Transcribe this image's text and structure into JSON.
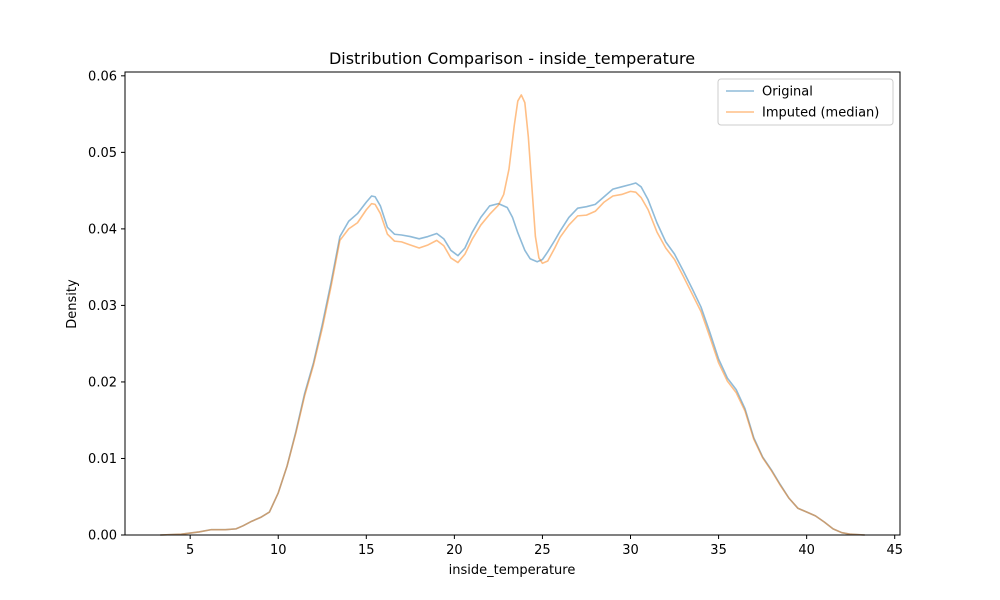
{
  "chart_data": {
    "type": "line",
    "title": "Distribution Comparison - inside_temperature",
    "xlabel": "inside_temperature",
    "ylabel": "Density",
    "xlim": [
      1.3,
      45.3
    ],
    "ylim": [
      0,
      0.0605
    ],
    "xticks": [
      5,
      10,
      15,
      20,
      25,
      30,
      35,
      40,
      45
    ],
    "xtick_labels": [
      "5",
      "10",
      "15",
      "20",
      "25",
      "30",
      "35",
      "40",
      "45"
    ],
    "yticks": [
      0,
      0.01,
      0.02,
      0.03,
      0.04,
      0.05,
      0.06
    ],
    "ytick_labels": [
      "0.00",
      "0.01",
      "0.02",
      "0.03",
      "0.04",
      "0.05",
      "0.06"
    ],
    "grid": false,
    "legend_position": "top-right",
    "series": [
      {
        "name": "Original",
        "color": "#1f77b4",
        "opacity": 0.5,
        "x": [
          3.3,
          4.5,
          5.5,
          6.2,
          7.0,
          7.6,
          8.0,
          8.5,
          9.0,
          9.5,
          10.0,
          10.5,
          11.0,
          11.5,
          12.0,
          12.5,
          13.0,
          13.5,
          14.0,
          14.5,
          15.0,
          15.3,
          15.5,
          15.8,
          16.2,
          16.6,
          17.0,
          17.5,
          18.0,
          18.5,
          19.0,
          19.4,
          19.8,
          20.2,
          20.6,
          21.0,
          21.5,
          22.0,
          22.5,
          23.0,
          23.3,
          23.6,
          24.0,
          24.3,
          24.7,
          25.0,
          25.3,
          25.7,
          26.0,
          26.5,
          27.0,
          27.5,
          28.0,
          28.5,
          29.0,
          29.5,
          30.0,
          30.3,
          30.6,
          31.0,
          31.5,
          32.0,
          32.5,
          33.0,
          33.5,
          34.0,
          34.5,
          35.0,
          35.5,
          36.0,
          36.5,
          37.0,
          37.5,
          38.0,
          38.5,
          39.0,
          39.5,
          40.0,
          40.5,
          41.0,
          41.5,
          42.0,
          42.5,
          43.3
        ],
        "y": [
          0.0,
          0.0001,
          0.0004,
          0.0007,
          0.0007,
          0.0008,
          0.0012,
          0.0018,
          0.0023,
          0.003,
          0.0055,
          0.009,
          0.0135,
          0.0185,
          0.0225,
          0.0275,
          0.033,
          0.039,
          0.041,
          0.042,
          0.0435,
          0.0443,
          0.0442,
          0.043,
          0.0402,
          0.0393,
          0.0392,
          0.039,
          0.0387,
          0.039,
          0.0394,
          0.0387,
          0.0372,
          0.0365,
          0.0375,
          0.0395,
          0.0415,
          0.043,
          0.0433,
          0.0428,
          0.0415,
          0.0395,
          0.0372,
          0.0361,
          0.0357,
          0.036,
          0.037,
          0.0385,
          0.0397,
          0.0415,
          0.0427,
          0.0429,
          0.0432,
          0.0442,
          0.0452,
          0.0455,
          0.0458,
          0.046,
          0.0455,
          0.0438,
          0.0408,
          0.0383,
          0.0367,
          0.0345,
          0.0322,
          0.0298,
          0.0265,
          0.023,
          0.0205,
          0.019,
          0.0165,
          0.0127,
          0.0102,
          0.0085,
          0.0066,
          0.0048,
          0.0035,
          0.003,
          0.0025,
          0.0017,
          0.0008,
          0.0003,
          0.0001,
          0.0
        ]
      },
      {
        "name": "Imputed (median)",
        "color": "#ff7f0e",
        "opacity": 0.5,
        "x": [
          3.3,
          4.5,
          5.5,
          6.2,
          7.0,
          7.6,
          8.0,
          8.5,
          9.0,
          9.5,
          10.0,
          10.5,
          11.0,
          11.5,
          12.0,
          12.5,
          13.0,
          13.5,
          14.0,
          14.5,
          15.0,
          15.3,
          15.5,
          15.8,
          16.2,
          16.6,
          17.0,
          17.5,
          18.0,
          18.5,
          19.0,
          19.4,
          19.8,
          20.2,
          20.6,
          21.0,
          21.5,
          22.0,
          22.5,
          22.8,
          23.1,
          23.4,
          23.6,
          23.8,
          24.0,
          24.2,
          24.4,
          24.6,
          24.8,
          25.0,
          25.3,
          25.7,
          26.0,
          26.5,
          27.0,
          27.5,
          28.0,
          28.5,
          29.0,
          29.5,
          30.0,
          30.3,
          30.6,
          31.0,
          31.5,
          32.0,
          32.5,
          33.0,
          33.5,
          34.0,
          34.5,
          35.0,
          35.5,
          36.0,
          36.5,
          37.0,
          37.5,
          38.0,
          38.5,
          39.0,
          39.5,
          40.0,
          40.5,
          41.0,
          41.5,
          42.0,
          42.5,
          43.3
        ],
        "y": [
          0.0,
          0.0001,
          0.0004,
          0.0007,
          0.0007,
          0.0008,
          0.0012,
          0.0018,
          0.0023,
          0.003,
          0.0055,
          0.009,
          0.0133,
          0.0182,
          0.0222,
          0.027,
          0.0325,
          0.0385,
          0.04,
          0.0408,
          0.0425,
          0.0433,
          0.0432,
          0.042,
          0.0393,
          0.0384,
          0.0383,
          0.0379,
          0.0375,
          0.0379,
          0.0385,
          0.0378,
          0.0362,
          0.0356,
          0.0367,
          0.0386,
          0.0405,
          0.0419,
          0.0431,
          0.0445,
          0.0478,
          0.0535,
          0.0567,
          0.0575,
          0.0565,
          0.052,
          0.0455,
          0.039,
          0.0362,
          0.0355,
          0.0358,
          0.0375,
          0.0389,
          0.0405,
          0.0417,
          0.0418,
          0.0423,
          0.0435,
          0.0443,
          0.0445,
          0.0449,
          0.0448,
          0.0441,
          0.0425,
          0.0396,
          0.0375,
          0.036,
          0.0338,
          0.0315,
          0.0292,
          0.0259,
          0.0225,
          0.0201,
          0.0186,
          0.0162,
          0.0125,
          0.0101,
          0.0084,
          0.0065,
          0.0048,
          0.0035,
          0.003,
          0.0025,
          0.0017,
          0.0008,
          0.0003,
          0.0001,
          0.0
        ]
      }
    ]
  }
}
